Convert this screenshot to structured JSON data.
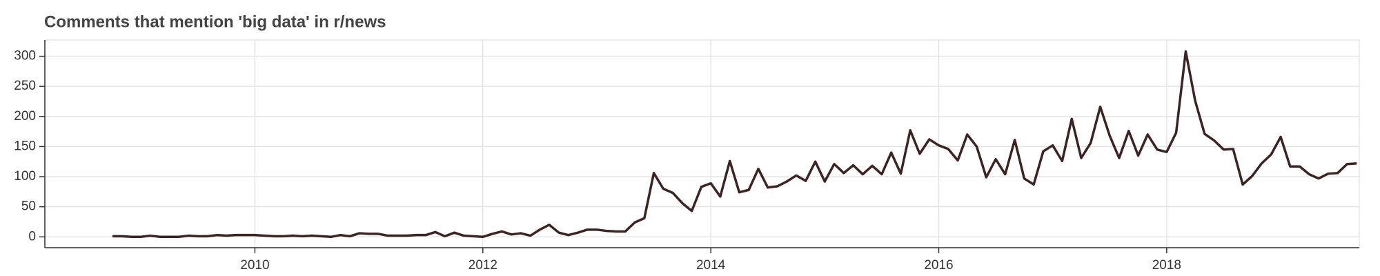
{
  "chart_data": {
    "type": "line",
    "title": "Comments that mention 'big data' in r/news",
    "x": [
      2008.75,
      2008.833,
      2008.917,
      2009,
      2009.083,
      2009.167,
      2009.25,
      2009.333,
      2009.417,
      2009.5,
      2009.583,
      2009.667,
      2009.75,
      2009.833,
      2009.917,
      2010,
      2010.083,
      2010.167,
      2010.25,
      2010.333,
      2010.417,
      2010.5,
      2010.583,
      2010.667,
      2010.75,
      2010.833,
      2010.917,
      2011,
      2011.083,
      2011.167,
      2011.25,
      2011.333,
      2011.417,
      2011.5,
      2011.583,
      2011.667,
      2011.75,
      2011.833,
      2011.917,
      2012,
      2012.083,
      2012.167,
      2012.25,
      2012.333,
      2012.417,
      2012.5,
      2012.583,
      2012.667,
      2012.75,
      2012.833,
      2012.917,
      2013,
      2013.083,
      2013.167,
      2013.25,
      2013.333,
      2013.417,
      2013.5,
      2013.583,
      2013.667,
      2013.75,
      2013.833,
      2013.917,
      2014,
      2014.083,
      2014.167,
      2014.25,
      2014.333,
      2014.417,
      2014.5,
      2014.583,
      2014.667,
      2014.75,
      2014.833,
      2014.917,
      2015,
      2015.083,
      2015.167,
      2015.25,
      2015.333,
      2015.417,
      2015.5,
      2015.583,
      2015.667,
      2015.75,
      2015.833,
      2015.917,
      2016,
      2016.083,
      2016.167,
      2016.25,
      2016.333,
      2016.417,
      2016.5,
      2016.583,
      2016.667,
      2016.75,
      2016.833,
      2016.917,
      2017,
      2017.083,
      2017.167,
      2017.25,
      2017.333,
      2017.417,
      2017.5,
      2017.583,
      2017.667,
      2017.75,
      2017.833,
      2017.917,
      2018,
      2018.083,
      2018.167,
      2018.25,
      2018.333,
      2018.417,
      2018.5,
      2018.583,
      2018.667,
      2018.75,
      2018.833,
      2018.917,
      2019,
      2019.083,
      2019.167,
      2019.25,
      2019.333,
      2019.417,
      2019.5,
      2019.583,
      2019.667
    ],
    "series": [
      {
        "color": "#3b2424",
        "values": [
          1,
          1,
          0,
          0,
          2,
          0,
          0,
          0,
          2,
          1,
          1,
          3,
          2,
          3,
          3,
          3,
          2,
          1,
          1,
          2,
          1,
          2,
          1,
          0,
          3,
          1,
          6,
          5,
          5,
          2,
          2,
          2,
          3,
          3,
          8,
          1,
          7,
          2,
          1,
          0,
          5,
          9,
          4,
          6,
          2,
          12,
          20,
          7,
          3,
          7,
          12,
          12,
          10,
          9,
          9,
          24,
          31,
          106,
          80,
          73,
          56,
          43,
          83,
          89,
          67,
          126,
          74,
          78,
          113,
          82,
          84,
          92,
          102,
          93,
          125,
          92,
          121,
          106,
          119,
          104,
          118,
          104,
          140,
          105,
          177,
          138,
          162,
          152,
          146,
          127,
          170,
          150,
          99,
          129,
          104,
          161,
          97,
          87,
          142,
          152,
          126,
          196,
          131,
          156,
          216,
          168,
          131,
          176,
          135,
          170,
          145,
          141,
          173,
          308,
          226,
          171,
          160,
          145,
          146,
          87,
          101,
          122,
          137,
          166,
          117,
          117,
          104,
          97,
          105,
          106,
          121,
          122
        ]
      }
    ],
    "xlim": [
      2008.157,
      2019.69
    ],
    "xticks": [
      2010,
      2012,
      2014,
      2016,
      2018
    ],
    "ylim": [
      -18,
      327
    ],
    "yticks": [
      0,
      50,
      100,
      150,
      200,
      250,
      300
    ],
    "grid": true
  }
}
